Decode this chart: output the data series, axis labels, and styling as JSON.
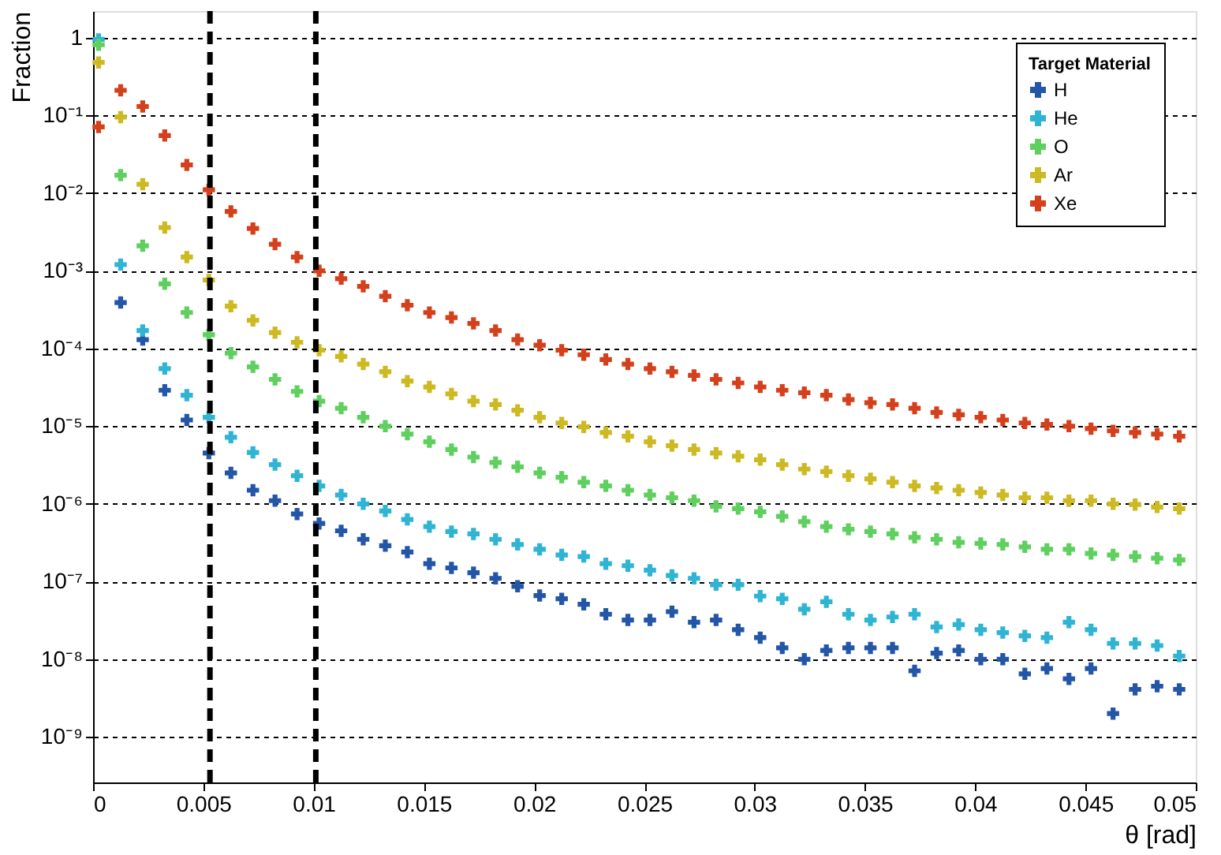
{
  "chart_data": {
    "type": "scatter",
    "xlabel": "θ [rad]",
    "ylabel": "Fraction",
    "legend_title": "Target Material",
    "x": [
      0.00025,
      0.00125,
      0.00225,
      0.00325,
      0.00425,
      0.00525,
      0.00625,
      0.00725,
      0.00825,
      0.00925,
      0.01025,
      0.01125,
      0.01225,
      0.01325,
      0.01425,
      0.01525,
      0.01625,
      0.01725,
      0.01825,
      0.01925,
      0.02025,
      0.02125,
      0.02225,
      0.02325,
      0.02425,
      0.02525,
      0.02625,
      0.02725,
      0.02825,
      0.02925,
      0.03025,
      0.03125,
      0.03225,
      0.03325,
      0.03425,
      0.03525,
      0.03625,
      0.03725,
      0.03825,
      0.03925,
      0.04025,
      0.04125,
      0.04225,
      0.04325,
      0.04425,
      0.04525,
      0.04625,
      0.04725,
      0.04825,
      0.04925
    ],
    "series": [
      {
        "name": "H",
        "color": "#2356a6",
        "values": [
          null,
          0.00039,
          0.00013,
          2.9e-05,
          1.2e-05,
          4.5e-06,
          2.5e-06,
          1.5e-06,
          1.1e-06,
          7.4e-07,
          5.6e-07,
          4.5e-07,
          3.5e-07,
          2.9e-07,
          2.4e-07,
          1.7e-07,
          1.5e-07,
          1.3e-07,
          1.1e-07,
          8.7e-08,
          6.6e-08,
          6e-08,
          5.1e-08,
          3.8e-08,
          3.2e-08,
          3.2e-08,
          4.1e-08,
          3e-08,
          3.2e-08,
          2.4e-08,
          1.9e-08,
          1.4e-08,
          1e-08,
          1.3e-08,
          1.4e-08,
          1.4e-08,
          1.4e-08,
          7.1e-09,
          1.2e-08,
          1.3e-08,
          1e-08,
          1e-08,
          6.5e-09,
          7.6e-09,
          5.6e-09,
          7.6e-09,
          2e-09,
          4.1e-09,
          4.5e-09,
          4.1e-09
        ]
      },
      {
        "name": "He",
        "color": "#2fb4d4",
        "values": [
          0.95,
          0.0012,
          0.00017,
          5.5e-05,
          2.5e-05,
          1.3e-05,
          7.2e-06,
          4.6e-06,
          3.2e-06,
          2.3e-06,
          1.7e-06,
          1.3e-06,
          1e-06,
          8.1e-07,
          6.3e-07,
          5.1e-07,
          4.4e-07,
          4.1e-07,
          3.5e-07,
          3e-07,
          2.6e-07,
          2.2e-07,
          2.1e-07,
          1.7e-07,
          1.6e-07,
          1.4e-07,
          1.2e-07,
          1.1e-07,
          9.1e-08,
          9.1e-08,
          6.5e-08,
          6e-08,
          4.4e-08,
          5.5e-08,
          3.8e-08,
          3.2e-08,
          3.5e-08,
          3.8e-08,
          2.6e-08,
          2.8e-08,
          2.4e-08,
          2.2e-08,
          2e-08,
          1.9e-08,
          3e-08,
          2.4e-08,
          1.6e-08,
          1.6e-08,
          1.5e-08,
          1.1e-08
        ]
      },
      {
        "name": "O",
        "color": "#5fcf5f",
        "values": [
          0.81,
          0.017,
          0.0021,
          0.00068,
          0.00029,
          0.00015,
          8.7e-05,
          5.8e-05,
          4e-05,
          2.8e-05,
          2.1e-05,
          1.7e-05,
          1.3e-05,
          1e-05,
          7.9e-06,
          6.3e-06,
          5e-06,
          4e-06,
          3.4e-06,
          3e-06,
          2.5e-06,
          2.2e-06,
          1.9e-06,
          1.7e-06,
          1.5e-06,
          1.3e-06,
          1.2e-06,
          1.1e-06,
          9.3e-07,
          8.7e-07,
          7.9e-07,
          6.9e-07,
          5.9e-07,
          5.1e-07,
          4.7e-07,
          4.4e-07,
          4.1e-07,
          3.7e-07,
          3.5e-07,
          3.2e-07,
          3.1e-07,
          3e-07,
          2.8e-07,
          2.6e-07,
          2.6e-07,
          2.3e-07,
          2.2e-07,
          2.1e-07,
          2e-07,
          1.9e-07
        ]
      },
      {
        "name": "Ar",
        "color": "#cdb922",
        "values": [
          0.48,
          0.095,
          0.013,
          0.0036,
          0.0015,
          0.00076,
          0.00035,
          0.00023,
          0.00016,
          0.00012,
          9.5e-05,
          7.9e-05,
          6.3e-05,
          5e-05,
          3.8e-05,
          3.2e-05,
          2.6e-05,
          2.1e-05,
          1.9e-05,
          1.6e-05,
          1.3e-05,
          1.1e-05,
          9.8e-06,
          8.3e-06,
          7.4e-06,
          6.3e-06,
          5.6e-06,
          5e-06,
          4.5e-06,
          4.1e-06,
          3.7e-06,
          3.2e-06,
          2.8e-06,
          2.6e-06,
          2.3e-06,
          2.1e-06,
          1.9e-06,
          1.7e-06,
          1.6e-06,
          1.5e-06,
          1.4e-06,
          1.3e-06,
          1.2e-06,
          1.2e-06,
          1.1e-06,
          1.1e-06,
          1e-06,
          9.8e-07,
          9.1e-07,
          8.7e-07
        ]
      },
      {
        "name": "Xe",
        "color": "#d4401c",
        "values": [
          0.071,
          0.21,
          0.13,
          0.055,
          0.023,
          0.011,
          0.0058,
          0.0035,
          0.0022,
          0.0015,
          0.001,
          0.00079,
          0.00063,
          0.00047,
          0.00036,
          0.00029,
          0.00025,
          0.00021,
          0.00017,
          0.00013,
          0.00011,
          9.5e-05,
          8.3e-05,
          7.2e-05,
          6.3e-05,
          5.5e-05,
          5e-05,
          4.5e-05,
          4e-05,
          3.6e-05,
          3.2e-05,
          2.9e-05,
          2.7e-05,
          2.5e-05,
          2.2e-05,
          2e-05,
          1.9e-05,
          1.7e-05,
          1.5e-05,
          1.4e-05,
          1.3e-05,
          1.2e-05,
          1.1e-05,
          1.05e-05,
          1e-05,
          9.3e-06,
          8.7e-06,
          8.3e-06,
          7.9e-06,
          7.4e-06
        ]
      }
    ],
    "xlim": [
      0,
      0.05
    ],
    "xticks": [
      0,
      0.005,
      0.01,
      0.015,
      0.02,
      0.025,
      0.03,
      0.035,
      0.04,
      0.045,
      0.05
    ],
    "ylim": [
      2.6e-10,
      2.2
    ],
    "log": true,
    "yticks": [
      {
        "value": 1,
        "label": "1"
      },
      {
        "value": 0.1,
        "label": "10⁻¹"
      },
      {
        "value": 0.01,
        "label": "10⁻²"
      },
      {
        "value": 0.001,
        "label": "10⁻³"
      },
      {
        "value": 0.0001,
        "label": "10⁻⁴"
      },
      {
        "value": 1e-05,
        "label": "10⁻⁵"
      },
      {
        "value": 1e-06,
        "label": "10⁻⁶"
      },
      {
        "value": 1e-07,
        "label": "10⁻⁷"
      },
      {
        "value": 1e-08,
        "label": "10⁻⁸"
      },
      {
        "value": 1e-09,
        "label": "10⁻⁹"
      }
    ],
    "ref_lines": [
      {
        "axis": "x",
        "value": 0.0053,
        "label": null,
        "color": "#000000",
        "line_style": "dashed"
      },
      {
        "axis": "x",
        "value": 0.0101,
        "label": null,
        "color": "#000000",
        "line_style": "dashed"
      }
    ],
    "grid": "y",
    "legend": "top right",
    "marker": "cross"
  }
}
